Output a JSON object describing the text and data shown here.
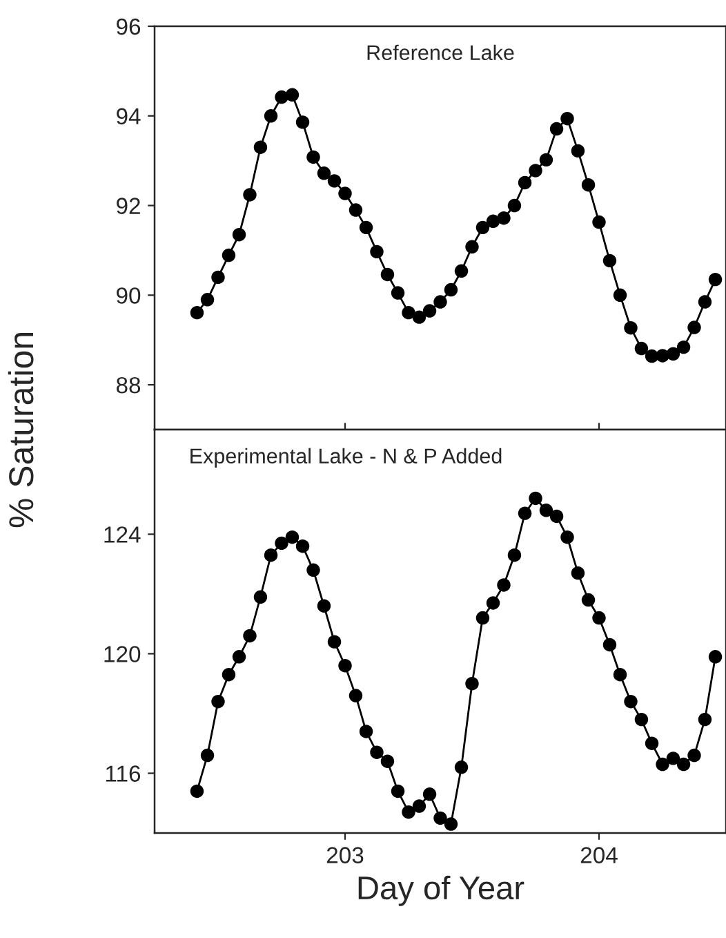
{
  "chart_data": [
    {
      "type": "line",
      "title": "Reference Lake",
      "ylabel": "% Saturation",
      "x": [
        202.417,
        202.458,
        202.5,
        202.542,
        202.583,
        202.625,
        202.667,
        202.708,
        202.75,
        202.792,
        202.833,
        202.875,
        202.917,
        202.958,
        203.0,
        203.042,
        203.083,
        203.125,
        203.167,
        203.208,
        203.25,
        203.292,
        203.333,
        203.375,
        203.417,
        203.458,
        203.5,
        203.542,
        203.583,
        203.625,
        203.667,
        203.708,
        203.75,
        203.792,
        203.833,
        203.875,
        203.917,
        203.958,
        204.0,
        204.042,
        204.083,
        204.125,
        204.167,
        204.208,
        204.25,
        204.292,
        204.333,
        204.375,
        204.417,
        204.458
      ],
      "series": [
        {
          "color": "#000000",
          "values": [
            89.61,
            89.9,
            90.4,
            90.89,
            91.35,
            92.24,
            93.3,
            94.0,
            94.42,
            94.47,
            93.86,
            93.08,
            92.72,
            92.55,
            92.27,
            91.9,
            91.51,
            90.97,
            90.46,
            90.05,
            89.61,
            89.51,
            89.65,
            89.85,
            90.12,
            90.54,
            91.08,
            91.51,
            91.65,
            91.72,
            92.0,
            92.51,
            92.78,
            93.02,
            93.71,
            93.94,
            93.22,
            92.46,
            91.63,
            90.77,
            90.0,
            89.27,
            88.81,
            88.64,
            88.65,
            88.69,
            88.84,
            89.28,
            89.85,
            90.35
          ]
        }
      ],
      "xlim": [
        202.25,
        204.5
      ],
      "xticks": [
        {
          "value": 203,
          "label": null
        },
        {
          "value": 204,
          "label": null
        }
      ],
      "ylim": [
        87,
        96
      ],
      "yticks": [
        88,
        90,
        92,
        94,
        96
      ],
      "tick_labels": "y",
      "grid": false,
      "marker": "circle",
      "line_style": "solid"
    },
    {
      "type": "line",
      "title": "Experimental Lake - N & P Added",
      "xlabel": "Day of Year",
      "x": [
        202.417,
        202.458,
        202.5,
        202.542,
        202.583,
        202.625,
        202.667,
        202.708,
        202.75,
        202.792,
        202.833,
        202.875,
        202.917,
        202.958,
        203.0,
        203.042,
        203.083,
        203.125,
        203.167,
        203.208,
        203.25,
        203.292,
        203.333,
        203.375,
        203.417,
        203.458,
        203.5,
        203.542,
        203.583,
        203.625,
        203.667,
        203.708,
        203.75,
        203.792,
        203.833,
        203.875,
        203.917,
        203.958,
        204.0,
        204.042,
        204.083,
        204.125,
        204.167,
        204.208,
        204.25,
        204.292,
        204.333,
        204.375,
        204.417,
        204.458
      ],
      "series": [
        {
          "color": "#000000",
          "values": [
            115.4,
            116.6,
            118.4,
            119.3,
            119.9,
            120.6,
            121.9,
            123.3,
            123.7,
            123.9,
            123.6,
            122.8,
            121.6,
            120.4,
            119.6,
            118.6,
            117.4,
            116.7,
            116.4,
            115.4,
            114.7,
            114.9,
            115.3,
            114.5,
            114.3,
            116.2,
            119.0,
            121.2,
            121.7,
            122.3,
            123.3,
            124.7,
            125.2,
            124.8,
            124.6,
            123.9,
            122.7,
            121.8,
            121.2,
            120.3,
            119.3,
            118.4,
            117.8,
            117.0,
            116.3,
            116.5,
            116.3,
            116.6,
            117.8,
            119.9
          ]
        }
      ],
      "xlim": [
        202.25,
        204.5
      ],
      "xticks": [
        203,
        204
      ],
      "ylim": [
        114,
        127.5
      ],
      "yticks": [
        116,
        120,
        124
      ],
      "grid": false,
      "marker": "circle",
      "line_style": "solid"
    }
  ]
}
